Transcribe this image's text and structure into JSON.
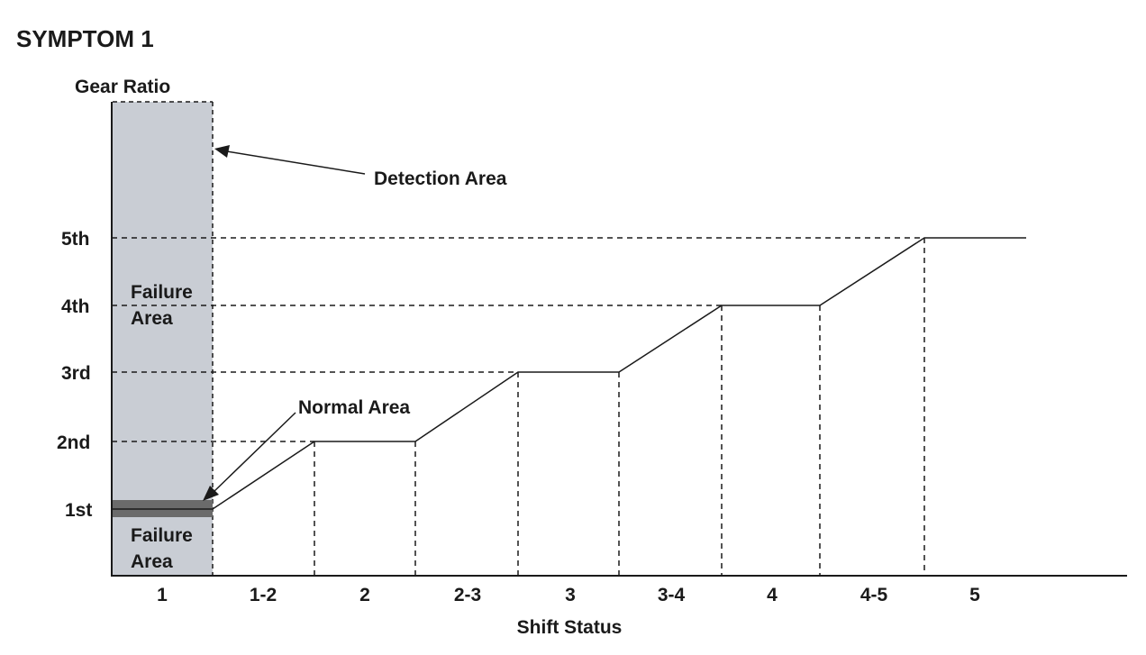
{
  "title": "SYMPTOM 1",
  "y_axis_label": "Gear Ratio",
  "x_axis_label": "Shift Status",
  "y_ticks": [
    "1st",
    "2nd",
    "3rd",
    "4th",
    "5th"
  ],
  "x_ticks": [
    "1",
    "1-2",
    "2",
    "2-3",
    "3",
    "3-4",
    "4",
    "4-5",
    "5"
  ],
  "annotations": {
    "detection_area": "Detection Area",
    "failure_area_upper": [
      "Failure",
      "Area"
    ],
    "failure_area_lower": [
      "Failure",
      "Area"
    ],
    "normal_area": "Normal Area"
  },
  "colors": {
    "detection_fill": "#c9cdd4",
    "normal_band": "#6b6b6b",
    "line": "#1a1a1a"
  }
}
